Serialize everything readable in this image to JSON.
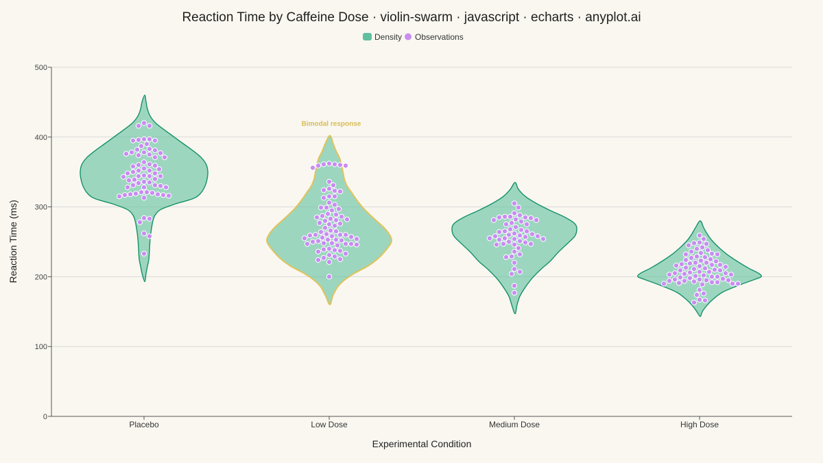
{
  "colors": {
    "background": "#f9f7f0",
    "density_fill": "#5fbf9e",
    "density_stroke": "#14906a",
    "highlight_stroke": "#e0c35a",
    "point_fill": "#c88cf2",
    "point_stroke": "#ffffff",
    "annotation": "#d9bd55",
    "grid": "#d9d9d9",
    "axis": "#555555"
  },
  "legend": {
    "items": [
      {
        "label": "Density",
        "icon": "rounded-square",
        "color": "#5fbf9e"
      },
      {
        "label": "Observations",
        "icon": "circle",
        "color": "#c88cf2"
      }
    ]
  },
  "chart_data": {
    "type": "violin-swarm",
    "title": "Reaction Time by Caffeine Dose · violin-swarm · javascript · echarts · anyplot.ai",
    "xlabel": "Experimental Condition",
    "ylabel": "Reaction Time (ms)",
    "ylim": [
      0,
      500
    ],
    "yticks": [
      0,
      100,
      200,
      300,
      400,
      500
    ],
    "grid": true,
    "legend_position": "top-center",
    "categories": [
      "Placebo",
      "Low Dose",
      "Medium Dose",
      "High Dose"
    ],
    "annotations": [
      {
        "category": "Low Dose",
        "text": "Bimodal response",
        "y": 420
      }
    ],
    "series": [
      {
        "name": "Density",
        "violins": [
          {
            "category": "Placebo",
            "min": 193,
            "max": 460,
            "half_width": [
              [
                193,
                1
              ],
              [
                205,
                3
              ],
              [
                215,
                5
              ],
              [
                225,
                7
              ],
              [
                240,
                8
              ],
              [
                255,
                9
              ],
              [
                270,
                11
              ],
              [
                280,
                13
              ],
              [
                288,
                16
              ],
              [
                296,
                24
              ],
              [
                304,
                45
              ],
              [
                312,
                72
              ],
              [
                320,
                83
              ],
              [
                330,
                89
              ],
              [
                340,
                92
              ],
              [
                350,
                93
              ],
              [
                360,
                91
              ],
              [
                370,
                84
              ],
              [
                380,
                72
              ],
              [
                390,
                58
              ],
              [
                400,
                44
              ],
              [
                410,
                30
              ],
              [
                420,
                17
              ],
              [
                430,
                9
              ],
              [
                440,
                5
              ],
              [
                450,
                3
              ],
              [
                460,
                1
              ]
            ]
          },
          {
            "category": "Low Dose",
            "min": 160,
            "max": 402,
            "half_width": [
              [
                160,
                1
              ],
              [
                172,
                5
              ],
              [
                185,
                12
              ],
              [
                195,
                22
              ],
              [
                205,
                37
              ],
              [
                215,
                56
              ],
              [
                225,
                70
              ],
              [
                235,
                80
              ],
              [
                245,
                88
              ],
              [
                252,
                91
              ],
              [
                260,
                88
              ],
              [
                270,
                80
              ],
              [
                280,
                69
              ],
              [
                290,
                58
              ],
              [
                300,
                48
              ],
              [
                310,
                40
              ],
              [
                320,
                33
              ],
              [
                330,
                26
              ],
              [
                340,
                22
              ],
              [
                350,
                20
              ],
              [
                360,
                18
              ],
              [
                370,
                15
              ],
              [
                380,
                10
              ],
              [
                390,
                6
              ],
              [
                402,
                1
              ]
            ]
          },
          {
            "category": "Medium Dose",
            "min": 147,
            "max": 335,
            "half_width": [
              [
                147,
                1
              ],
              [
                160,
                4
              ],
              [
                172,
                8
              ],
              [
                185,
                16
              ],
              [
                198,
                26
              ],
              [
                210,
                38
              ],
              [
                222,
                52
              ],
              [
                235,
                64
              ],
              [
                248,
                78
              ],
              [
                258,
                88
              ],
              [
                268,
                91
              ],
              [
                276,
                88
              ],
              [
                285,
                74
              ],
              [
                295,
                52
              ],
              [
                305,
                32
              ],
              [
                315,
                16
              ],
              [
                325,
                6
              ],
              [
                335,
                1
              ]
            ]
          },
          {
            "category": "High Dose",
            "min": 143,
            "max": 280,
            "half_width": [
              [
                143,
                1
              ],
              [
                150,
                4
              ],
              [
                158,
                10
              ],
              [
                168,
                20
              ],
              [
                178,
                34
              ],
              [
                188,
                58
              ],
              [
                196,
                80
              ],
              [
                200,
                90
              ],
              [
                205,
                86
              ],
              [
                212,
                72
              ],
              [
                222,
                55
              ],
              [
                232,
                40
              ],
              [
                242,
                28
              ],
              [
                252,
                18
              ],
              [
                260,
                12
              ],
              [
                270,
                6
              ],
              [
                280,
                1
              ]
            ]
          }
        ]
      },
      {
        "name": "Observations",
        "groups": [
          {
            "category": "Placebo",
            "values": [
              420,
              416,
              416,
              397,
              397,
              396,
              395,
              395,
              390,
              387,
              383,
              382,
              381,
              378,
              378,
              377,
              376,
              375,
              374,
              371,
              371,
              364,
              361,
              360,
              359,
              358,
              355,
              354,
              352,
              352,
              350,
              348,
              348,
              345,
              344,
              344,
              344,
              343,
              340,
              339,
              338,
              336,
              335,
              334,
              331,
              331,
              330,
              328,
              328,
              328,
              321,
              321,
              320,
              319,
              318,
              318,
              317,
              317,
              316,
              315,
              313,
              284,
              283,
              278,
              262,
              258,
              233
            ]
          },
          {
            "category": "Low Dose",
            "values": [
              362,
              361,
              361,
              360,
              359,
              359,
              356,
              336,
              331,
              326,
              324,
              323,
              322,
              315,
              315,
              313,
              306,
              303,
              299,
              299,
              297,
              295,
              290,
              289,
              287,
              286,
              285,
              283,
              282,
              281,
              280,
              277,
              276,
              275,
              273,
              270,
              266,
              265,
              264,
              261,
              260,
              260,
              260,
              259,
              258,
              257,
              256,
              255,
              254,
              253,
              253,
              252,
              251,
              250,
              248,
              248,
              247,
              247,
              247,
              246,
              245,
              240,
              239,
              238,
              237,
              236,
              233,
              231,
              229,
              227,
              225,
              224,
              221,
              200
            ]
          },
          {
            "category": "Medium Dose",
            "values": [
              305,
              299,
              291,
              288,
              286,
              286,
              285,
              285,
              284,
              282,
              281,
              281,
              279,
              277,
              275,
              275,
              271,
              268,
              267,
              265,
              265,
              264,
              262,
              261,
              260,
              259,
              258,
              258,
              257,
              255,
              255,
              254,
              254,
              253,
              251,
              250,
              249,
              247,
              247,
              246,
              246,
              241,
              236,
              232,
              229,
              228,
              220,
              211,
              207,
              204,
              187,
              177
            ]
          },
          {
            "category": "High Dose",
            "values": [
              259,
              254,
              249,
              248,
              247,
              245,
              242,
              240,
              238,
              236,
              234,
              233,
              232,
              232,
              229,
              228,
              227,
              225,
              224,
              223,
              222,
              220,
              220,
              219,
              218,
              217,
              217,
              216,
              215,
              214,
              213,
              212,
              211,
              210,
              209,
              209,
              207,
              207,
              206,
              205,
              205,
              204,
              203,
              203,
              202,
              201,
              200,
              200,
              199,
              198,
              197,
              196,
              196,
              195,
              195,
              194,
              194,
              193,
              192,
              192,
              191,
              190,
              190,
              190,
              189,
              181,
              176,
              174,
              167,
              166,
              163
            ]
          }
        ]
      }
    ]
  }
}
